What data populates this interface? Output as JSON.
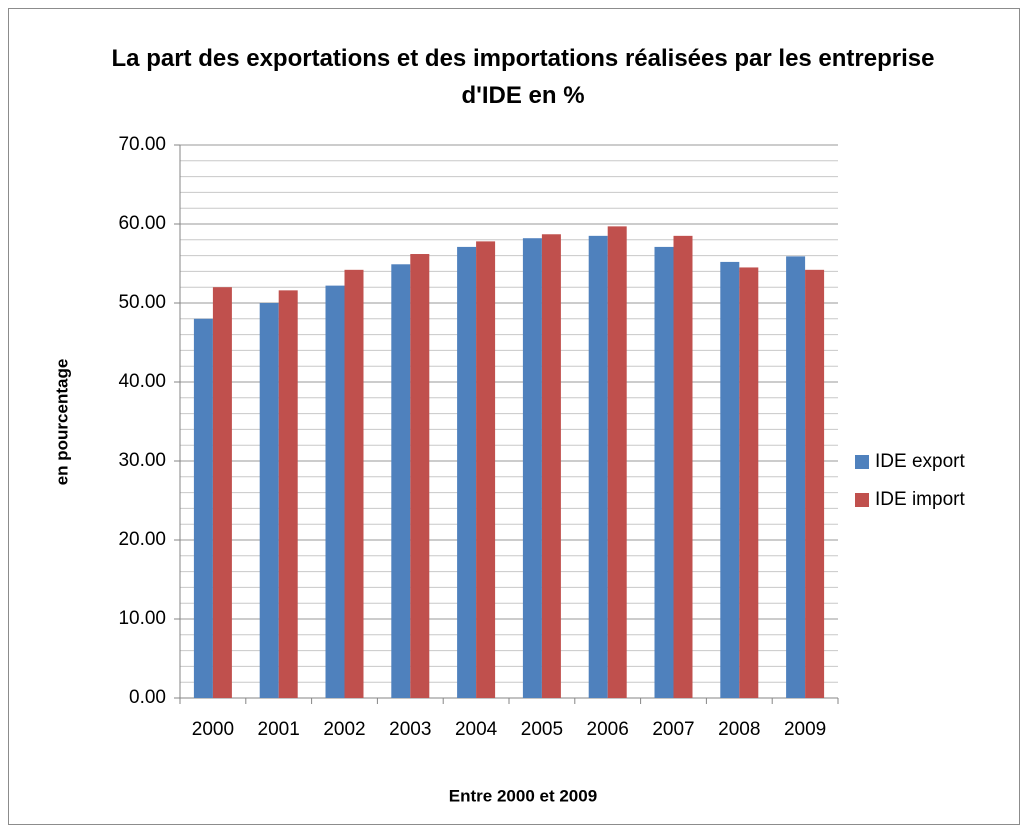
{
  "chart_data": {
    "type": "bar",
    "title": "La part des exportations et des importations réalisées par les entreprise d'IDE en %",
    "x_label": "Entre 2000 et 2009",
    "y_label": "en pourcentage",
    "categories": [
      "2000",
      "2001",
      "2002",
      "2003",
      "2004",
      "2005",
      "2006",
      "2007",
      "2008",
      "2009"
    ],
    "series": [
      {
        "name": "IDE export",
        "color": "#4f81bd",
        "values": [
          48.0,
          50.0,
          52.2,
          54.9,
          57.1,
          58.2,
          58.5,
          57.1,
          55.2,
          55.9
        ]
      },
      {
        "name": "IDE import",
        "color": "#c0504d",
        "values": [
          52.0,
          51.6,
          54.2,
          56.2,
          57.8,
          58.7,
          59.7,
          58.5,
          54.5,
          54.2
        ]
      }
    ],
    "ylim": [
      0,
      70
    ],
    "yticks": [
      {
        "value": 0,
        "label": "0.00"
      },
      {
        "value": 10,
        "label": "10.00"
      },
      {
        "value": 20,
        "label": "20.00"
      },
      {
        "value": 30,
        "label": "30.00"
      },
      {
        "value": 40,
        "label": "40.00"
      },
      {
        "value": 50,
        "label": "50.00"
      },
      {
        "value": 60,
        "label": "60.00"
      },
      {
        "value": 70,
        "label": "70.00"
      }
    ],
    "minor_yticks": [
      2,
      4,
      6,
      8,
      12,
      14,
      16,
      18,
      22,
      24,
      26,
      28,
      32,
      34,
      36,
      38,
      42,
      44,
      46,
      48,
      52,
      54,
      56,
      58,
      62,
      64,
      66,
      68
    ],
    "grid": true,
    "legend": "right"
  }
}
